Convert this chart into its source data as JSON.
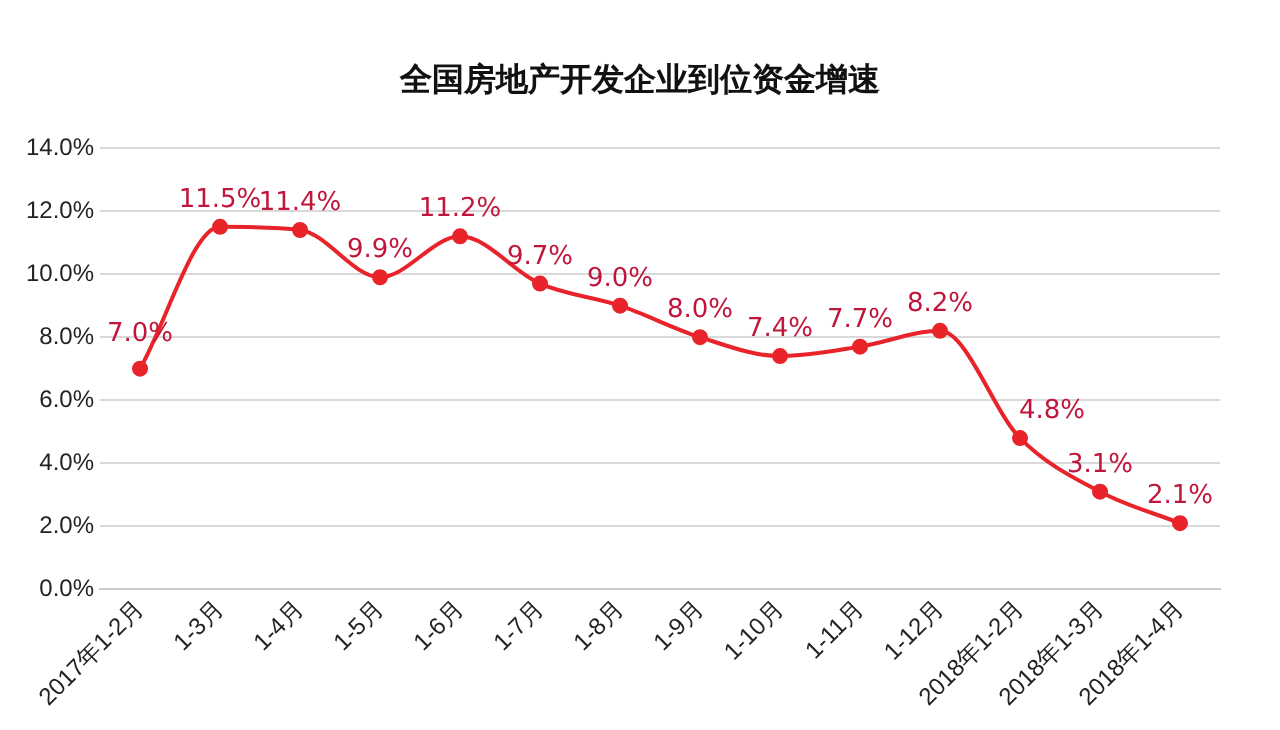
{
  "chart_data": {
    "type": "line",
    "title": "全国房地产开发企业到位资金增速",
    "categories": [
      "2017年1-2月",
      "1-3月",
      "1-4月",
      "1-5月",
      "1-6月",
      "1-7月",
      "1-8月",
      "1-9月",
      "1-10月",
      "1-11月",
      "1-12月",
      "2018年1-2月",
      "2018年1-3月",
      "2018年1-4月"
    ],
    "series": [
      {
        "color": "#e8232a",
        "values": [
          7.0,
          11.5,
          11.4,
          9.9,
          11.2,
          9.7,
          9.0,
          8.0,
          7.4,
          7.7,
          8.2,
          4.8,
          3.1,
          2.1
        ],
        "value_labels": [
          "7.0%",
          "11.5%",
          "11.4%",
          "9.9%",
          "11.2%",
          "9.7%",
          "9.0%",
          "8.0%",
          "7.4%",
          "7.7%",
          "8.2%",
          "4.8%",
          "3.1%",
          "2.1%"
        ]
      }
    ],
    "ylim": [
      0,
      14
    ],
    "yticks": [
      {
        "value": 0,
        "label": "0.0%"
      },
      {
        "value": 2,
        "label": "2.0%"
      },
      {
        "value": 4,
        "label": "4.0%"
      },
      {
        "value": 6,
        "label": "6.0%"
      },
      {
        "value": 8,
        "label": "8.0%"
      },
      {
        "value": 10,
        "label": "10.0%"
      },
      {
        "value": 12,
        "label": "12.0%"
      },
      {
        "value": 14,
        "label": "14.0%"
      }
    ],
    "grid": "y",
    "legend": false,
    "marker": "circle",
    "line_style": "solid"
  }
}
